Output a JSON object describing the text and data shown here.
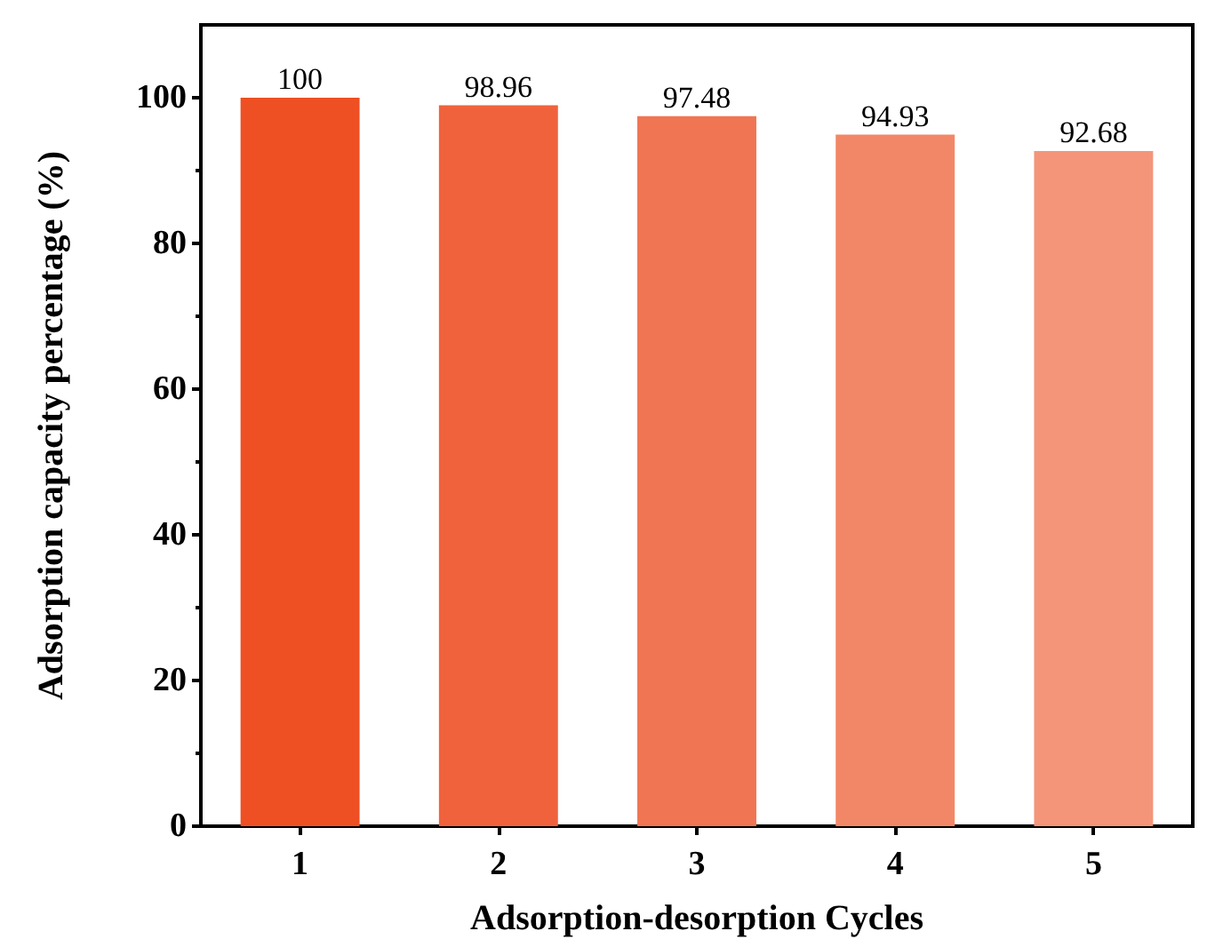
{
  "chart_data": {
    "type": "bar",
    "xlabel": "Adsorption-desorption Cycles",
    "ylabel": "Adsorption capacity percentage (%)",
    "categories": [
      "1",
      "2",
      "3",
      "4",
      "5"
    ],
    "values": [
      100,
      98.96,
      97.48,
      94.93,
      92.68
    ],
    "colors": [
      "#ee5023",
      "#f0623c",
      "#f07552",
      "#f28767",
      "#f4957a"
    ],
    "ylim": [
      0,
      110
    ],
    "yticks": [
      0,
      20,
      40,
      60,
      80,
      100
    ],
    "data_labels": true,
    "grid": false
  }
}
